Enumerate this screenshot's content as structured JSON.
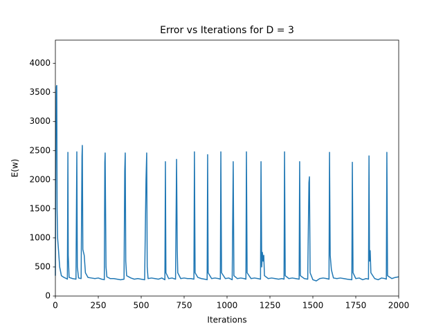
{
  "chart_data": {
    "type": "line",
    "title": "Error vs Iterations for D = 3",
    "x_label": "Iterations",
    "y_label": "E(w)",
    "x": [
      0,
      3,
      6,
      8,
      10,
      13,
      18,
      25,
      35,
      50,
      65,
      70,
      73,
      75,
      80,
      100,
      120,
      125,
      128,
      135,
      150,
      155,
      157,
      160,
      168,
      175,
      190,
      210,
      230,
      250,
      270,
      285,
      288,
      290,
      292,
      295,
      300,
      320,
      340,
      360,
      380,
      400,
      404,
      407,
      410,
      415,
      440,
      460,
      480,
      500,
      520,
      528,
      532,
      535,
      540,
      560,
      580,
      600,
      620,
      638,
      641,
      644,
      660,
      680,
      700,
      706,
      710,
      713,
      730,
      750,
      770,
      790,
      807,
      810,
      814,
      830,
      850,
      870,
      884,
      887,
      890,
      910,
      930,
      950,
      961,
      964,
      968,
      990,
      1010,
      1030,
      1036,
      1040,
      1060,
      1080,
      1100,
      1110,
      1113,
      1117,
      1140,
      1160,
      1180,
      1195,
      1198,
      1202,
      1206,
      1210,
      1214,
      1218,
      1240,
      1260,
      1280,
      1300,
      1320,
      1332,
      1335,
      1339,
      1360,
      1380,
      1400,
      1420,
      1423,
      1427,
      1450,
      1470,
      1477,
      1480,
      1484,
      1500,
      1520,
      1540,
      1560,
      1580,
      1594,
      1597,
      1601,
      1608,
      1620,
      1640,
      1660,
      1680,
      1700,
      1727,
      1730,
      1734,
      1750,
      1770,
      1790,
      1810,
      1824,
      1827,
      1830,
      1834,
      1838,
      1860,
      1880,
      1900,
      1920,
      1928,
      1931,
      1935,
      1960,
      1980,
      2000
    ],
    "series": [
      {
        "name": "E(w)",
        "color": "#1f77b4",
        "values": [
          350,
          3000,
          3600,
          3620,
          1500,
          1000,
          800,
          500,
          350,
          320,
          300,
          290,
          2470,
          700,
          320,
          300,
          290,
          2480,
          500,
          310,
          300,
          2400,
          2590,
          800,
          700,
          400,
          320,
          310,
          300,
          310,
          290,
          280,
          2300,
          2460,
          1650,
          500,
          330,
          300,
          300,
          290,
          280,
          290,
          2150,
          2460,
          600,
          350,
          310,
          290,
          300,
          290,
          280,
          2000,
          2460,
          500,
          300,
          310,
          300,
          290,
          310,
          280,
          2310,
          400,
          300,
          310,
          290,
          2350,
          780,
          400,
          300,
          310,
          300,
          300,
          290,
          2480,
          400,
          320,
          300,
          290,
          280,
          2430,
          400,
          300,
          310,
          300,
          290,
          2480,
          400,
          300,
          310,
          280,
          2310,
          350,
          300,
          310,
          300,
          290,
          2480,
          400,
          300,
          310,
          300,
          290,
          2310,
          500,
          750,
          600,
          700,
          350,
          300,
          310,
          300,
          290,
          300,
          290,
          2480,
          350,
          300,
          310,
          300,
          290,
          2310,
          350,
          300,
          290,
          1950,
          2050,
          400,
          280,
          260,
          300,
          310,
          300,
          290,
          2470,
          700,
          450,
          310,
          300,
          310,
          300,
          290,
          280,
          2300,
          400,
          300,
          310,
          280,
          300,
          290,
          2410,
          600,
          780,
          400,
          300,
          280,
          310,
          300,
          290,
          2470,
          350,
          300,
          320,
          330
        ]
      }
    ],
    "xlim": [
      0,
      2000
    ],
    "ylim": [
      0,
      4400
    ],
    "xticks": [
      0,
      250,
      500,
      750,
      1000,
      1250,
      1500,
      1750,
      2000
    ],
    "yticks": [
      0,
      500,
      1000,
      1500,
      2000,
      2500,
      3000,
      3500,
      4000
    ],
    "grid": false
  }
}
